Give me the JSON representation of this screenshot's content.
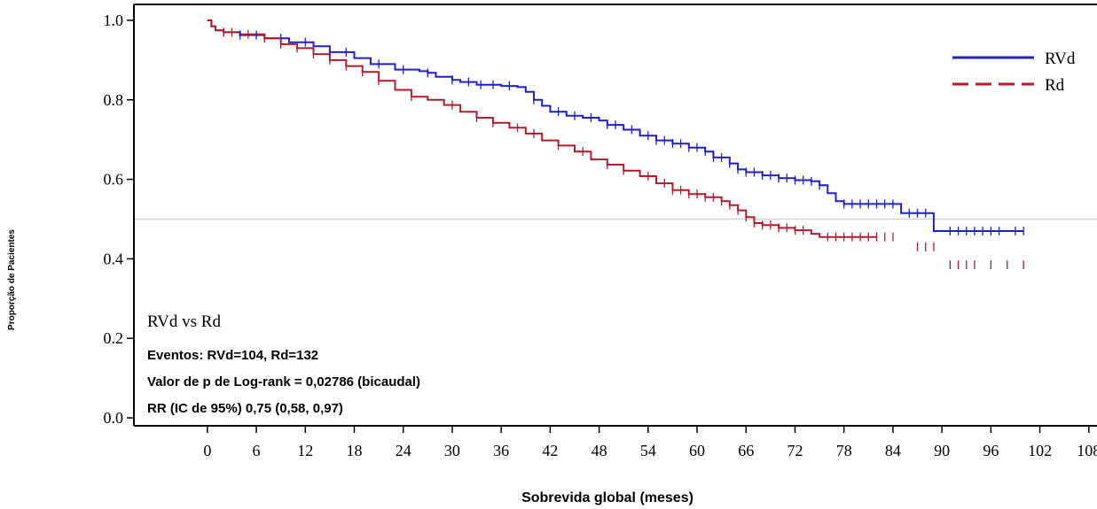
{
  "chart_data": {
    "type": "line",
    "subtype": "kaplan-meier",
    "title": "",
    "xlabel": "Sobrevida global (meses)",
    "ylabel": "Proporção de Pacientes",
    "xlim": [
      -9,
      109
    ],
    "ylim": [
      -0.02,
      1.04
    ],
    "x_ticks": [
      "0",
      "6",
      "12",
      "18",
      "24",
      "30",
      "36",
      "42",
      "48",
      "54",
      "60",
      "66",
      "72",
      "78",
      "84",
      "90",
      "96",
      "102",
      "108"
    ],
    "y_ticks": [
      "0.0",
      "0.2",
      "0.4",
      "0.6",
      "0.8",
      "1.0"
    ],
    "reference_line_y": 0.5,
    "legend_position": "top-right",
    "series": [
      {
        "name": "RVd",
        "color": "#1f1fd0",
        "line_style": "solid",
        "points": [
          [
            0,
            1.0
          ],
          [
            0.5,
            0.985
          ],
          [
            1,
            0.975
          ],
          [
            2,
            0.97
          ],
          [
            4,
            0.963
          ],
          [
            7,
            0.955
          ],
          [
            10,
            0.945
          ],
          [
            13,
            0.935
          ],
          [
            15,
            0.92
          ],
          [
            18,
            0.905
          ],
          [
            20,
            0.89
          ],
          [
            23,
            0.876
          ],
          [
            26,
            0.872
          ],
          [
            27,
            0.868
          ],
          [
            28,
            0.858
          ],
          [
            30,
            0.85
          ],
          [
            31,
            0.845
          ],
          [
            33,
            0.838
          ],
          [
            36,
            0.835
          ],
          [
            38,
            0.832
          ],
          [
            39,
            0.82
          ],
          [
            40,
            0.8
          ],
          [
            41,
            0.785
          ],
          [
            42,
            0.77
          ],
          [
            44,
            0.76
          ],
          [
            46,
            0.755
          ],
          [
            48,
            0.748
          ],
          [
            49,
            0.737
          ],
          [
            51,
            0.725
          ],
          [
            53,
            0.71
          ],
          [
            55,
            0.698
          ],
          [
            57,
            0.69
          ],
          [
            59,
            0.68
          ],
          [
            61,
            0.67
          ],
          [
            62,
            0.655
          ],
          [
            64,
            0.64
          ],
          [
            65,
            0.625
          ],
          [
            66,
            0.618
          ],
          [
            68,
            0.61
          ],
          [
            70,
            0.603
          ],
          [
            72,
            0.598
          ],
          [
            74,
            0.595
          ],
          [
            75,
            0.585
          ],
          [
            76,
            0.565
          ],
          [
            77,
            0.545
          ],
          [
            78,
            0.538
          ],
          [
            80,
            0.538
          ],
          [
            84,
            0.538
          ],
          [
            85,
            0.515
          ],
          [
            88,
            0.515
          ],
          [
            89,
            0.47
          ],
          [
            100,
            0.47
          ]
        ],
        "censor_x": [
          2,
          4,
          6,
          9,
          12,
          15,
          17,
          21,
          24,
          27,
          30,
          32,
          33.5,
          35,
          37,
          40,
          43,
          45,
          47,
          49,
          50,
          52,
          54,
          55,
          56,
          57,
          58,
          59,
          60,
          61,
          62,
          63,
          64,
          65,
          66,
          67,
          68,
          69,
          70,
          71,
          72,
          73,
          74,
          75,
          78,
          79,
          80,
          81,
          82,
          83,
          84,
          86,
          87,
          88,
          91,
          92,
          93,
          94,
          95,
          96,
          97,
          99,
          100
        ]
      },
      {
        "name": "Rd",
        "color": "#b01c2e",
        "line_style": "dashed",
        "points": [
          [
            0,
            1.0
          ],
          [
            0.5,
            0.985
          ],
          [
            1,
            0.975
          ],
          [
            2,
            0.97
          ],
          [
            4,
            0.965
          ],
          [
            7,
            0.955
          ],
          [
            9,
            0.94
          ],
          [
            11,
            0.93
          ],
          [
            13,
            0.915
          ],
          [
            15,
            0.9
          ],
          [
            17,
            0.885
          ],
          [
            19,
            0.87
          ],
          [
            21,
            0.848
          ],
          [
            23,
            0.825
          ],
          [
            25,
            0.808
          ],
          [
            27,
            0.8
          ],
          [
            29,
            0.787
          ],
          [
            31,
            0.77
          ],
          [
            33,
            0.755
          ],
          [
            35,
            0.742
          ],
          [
            37,
            0.73
          ],
          [
            39,
            0.715
          ],
          [
            41,
            0.698
          ],
          [
            43,
            0.685
          ],
          [
            45,
            0.67
          ],
          [
            47,
            0.65
          ],
          [
            49,
            0.637
          ],
          [
            51,
            0.622
          ],
          [
            53,
            0.608
          ],
          [
            55,
            0.59
          ],
          [
            57,
            0.573
          ],
          [
            59,
            0.563
          ],
          [
            61,
            0.555
          ],
          [
            63,
            0.545
          ],
          [
            64,
            0.535
          ],
          [
            65,
            0.522
          ],
          [
            66,
            0.505
          ],
          [
            67,
            0.49
          ],
          [
            68,
            0.485
          ],
          [
            70,
            0.478
          ],
          [
            72,
            0.472
          ],
          [
            74,
            0.463
          ],
          [
            75,
            0.455
          ],
          [
            78,
            0.455
          ],
          [
            80,
            0.455
          ],
          [
            86,
            0.455
          ],
          [
            86.5,
            0.43
          ],
          [
            90,
            0.43
          ],
          [
            90.5,
            0.385
          ],
          [
            100,
            0.385
          ]
        ],
        "censor_x": [
          2,
          3,
          5,
          7,
          9,
          11,
          13,
          15,
          17,
          19,
          21,
          25,
          30,
          33,
          35,
          38,
          40,
          43,
          46,
          49,
          51,
          54,
          56,
          57,
          58,
          59,
          60,
          61,
          62,
          63,
          64,
          65,
          66,
          67,
          68,
          69,
          70,
          71,
          72,
          73,
          76,
          77,
          78,
          79,
          80,
          81,
          82,
          83,
          84,
          87,
          88,
          89,
          91,
          92,
          93,
          94,
          96,
          98,
          100
        ]
      }
    ],
    "annotations": {
      "comparison": "RVd vs Rd",
      "events": "Eventos: RVd=104, Rd=132",
      "pvalue": "Valor de p de Log-rank = 0,02786 (bicaudal)",
      "hr": "RR (IC de 95%) 0,75 (0,58, 0,97)"
    }
  }
}
